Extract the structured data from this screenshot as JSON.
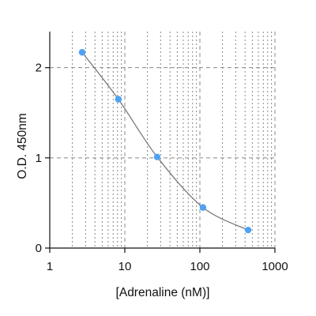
{
  "chart_data": {
    "type": "scatter",
    "xlabel": "[Adrenaline (nM)]",
    "ylabel": "O.D. 450nm",
    "x_scale": "log",
    "xlim": [
      1,
      1000
    ],
    "ylim": [
      0,
      2.4
    ],
    "x_ticks": [
      1,
      10,
      100,
      1000
    ],
    "x_tick_labels": [
      "1",
      "10",
      "100",
      "1000"
    ],
    "y_ticks": [
      0,
      1,
      2
    ],
    "y_tick_labels": [
      "0",
      "1",
      "2"
    ],
    "grid": {
      "vertical_minor_dotted": true,
      "major_dashed": true
    },
    "series": [
      {
        "points": [
          {
            "x": 2.7,
            "y": 2.17
          },
          {
            "x": 8.2,
            "y": 1.65
          },
          {
            "x": 27,
            "y": 1.01
          },
          {
            "x": 110,
            "y": 0.45
          },
          {
            "x": 440,
            "y": 0.2
          }
        ],
        "fit_curve": true
      }
    ],
    "colors": {
      "points": "#4da3f2",
      "curve": "#7a7a7a",
      "grid": "#888888",
      "axes": "#111111"
    }
  }
}
